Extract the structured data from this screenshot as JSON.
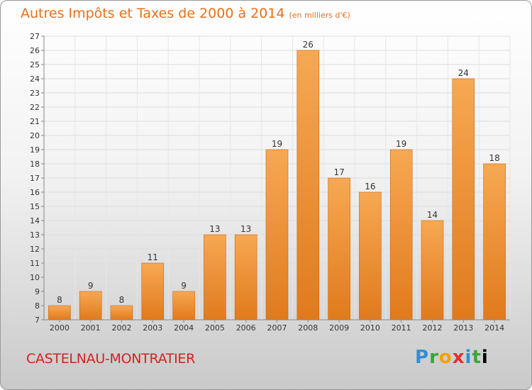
{
  "title": "Autres Impôts et Taxes de 2000 à 2014",
  "subtitle": "(en milliers d'€)",
  "commune": "CASTELNAU-MONTRATIER",
  "logo": "Proxiti",
  "colors": {
    "bar_top": "#f7a853",
    "bar_bottom": "#e07a1c",
    "title": "#e8701a",
    "commune": "#d62020"
  },
  "chart_data": {
    "type": "bar",
    "categories": [
      "2000",
      "2001",
      "2002",
      "2003",
      "2004",
      "2005",
      "2006",
      "2007",
      "2008",
      "2009",
      "2010",
      "2011",
      "2012",
      "2013",
      "2014"
    ],
    "values": [
      8,
      9,
      8,
      11,
      9,
      13,
      13,
      19,
      26,
      17,
      16,
      19,
      14,
      24,
      18
    ],
    "ylim": [
      7,
      27
    ],
    "yticks": [
      7,
      8,
      9,
      10,
      11,
      12,
      13,
      14,
      15,
      16,
      17,
      18,
      19,
      20,
      21,
      22,
      23,
      24,
      25,
      26,
      27
    ],
    "grid": true
  }
}
